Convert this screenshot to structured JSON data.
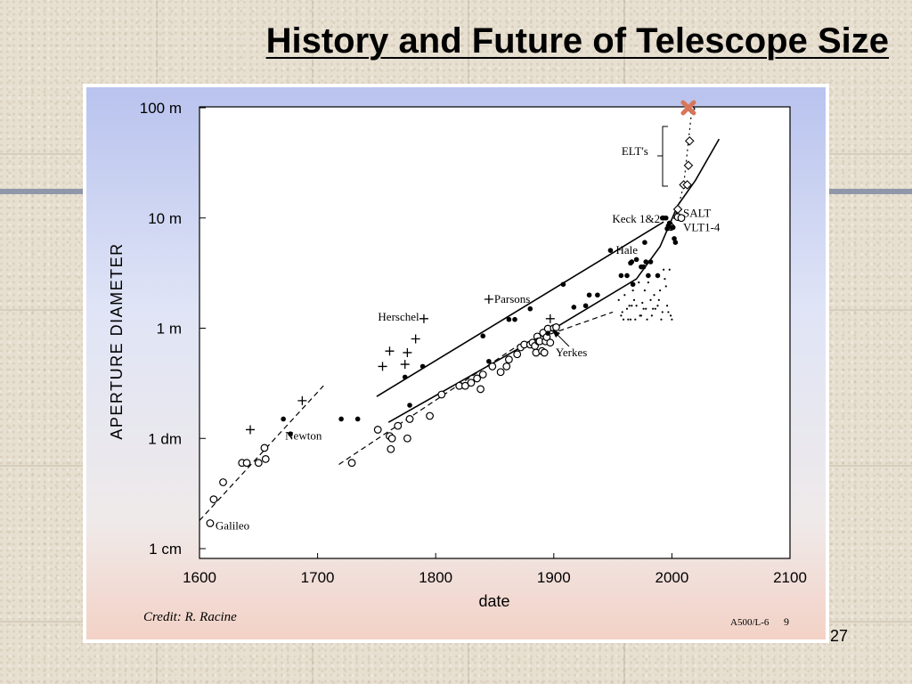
{
  "slide": {
    "title": "History and Future of Telescope Size",
    "page_number": "27"
  },
  "chart_data": {
    "type": "scatter",
    "xlabel": "date",
    "ylabel": "APERTURE DIAMETER",
    "xlim": [
      1600,
      2100
    ],
    "xticks": [
      1600,
      1700,
      1800,
      1900,
      2000,
      2100
    ],
    "y_scale": "log",
    "ylim_m": [
      0.01,
      100
    ],
    "yticks": [
      {
        "value_m": 100,
        "label": "100 m"
      },
      {
        "value_m": 10,
        "label": "10 m"
      },
      {
        "value_m": 1,
        "label": "1 m"
      },
      {
        "value_m": 0.1,
        "label": "1 dm"
      },
      {
        "value_m": 0.01,
        "label": "1 cm"
      }
    ],
    "grid": false,
    "credit": "Credit: R. Racine",
    "figure_id": "A500/L-6",
    "figure_page": "9",
    "annotations": [
      {
        "text": "Galileo",
        "x": 1609,
        "y": 0.016
      },
      {
        "text": "Newton",
        "x": 1668,
        "y": 0.105
      },
      {
        "text": "Herschel",
        "x": 1789,
        "y": 1.26
      },
      {
        "text": "Parsons",
        "x": 1845,
        "y": 1.83
      },
      {
        "text": "Yerkes",
        "x": 1897,
        "y": 0.6
      },
      {
        "text": "Hale",
        "x": 1948,
        "y": 5.08
      },
      {
        "text": "Keck 1&2",
        "x": 1993,
        "y": 9.8
      },
      {
        "text": "SALT",
        "x": 2005,
        "y": 11.0
      },
      {
        "text": "VLT1-4",
        "x": 2005,
        "y": 8.2
      },
      {
        "text": "ELT's",
        "x": 1983,
        "y": 40
      }
    ],
    "series": [
      {
        "marker": "open-circle",
        "x": [
          1609,
          1612,
          1620,
          1636,
          1640,
          1650,
          1655,
          1656,
          1729,
          1751,
          1761,
          1762,
          1763,
          1768,
          1776,
          1778,
          1795,
          1805,
          1820,
          1825,
          1830,
          1835,
          1838,
          1840,
          1848,
          1855,
          1860,
          1862,
          1869,
          1872,
          1875,
          1880,
          1882,
          1884,
          1885,
          1886,
          1887,
          1888,
          1890,
          1891,
          1892,
          1893,
          1894,
          1895,
          1897,
          1900,
          1902,
          1999,
          2005,
          2008
        ],
        "y": [
          0.017,
          0.028,
          0.04,
          0.06,
          0.06,
          0.06,
          0.082,
          0.065,
          0.06,
          0.12,
          0.105,
          0.08,
          0.1,
          0.13,
          0.1,
          0.15,
          0.16,
          0.25,
          0.3,
          0.3,
          0.32,
          0.35,
          0.28,
          0.38,
          0.45,
          0.4,
          0.45,
          0.52,
          0.58,
          0.67,
          0.71,
          0.71,
          0.74,
          0.69,
          0.6,
          0.84,
          0.76,
          0.76,
          0.62,
          0.91,
          0.6,
          0.76,
          0.83,
          0.99,
          0.74,
          1.0,
          1.02,
          8.3,
          10.2,
          10.0
        ]
      },
      {
        "marker": "filled-dot",
        "x": [
          1671,
          1677,
          1720,
          1734,
          1774,
          1778,
          1789,
          1840,
          1845,
          1862,
          1867,
          1880,
          1895,
          1908,
          1917,
          1927,
          1930,
          1937,
          1948,
          1957,
          1962,
          1965,
          1966,
          1967,
          1970,
          1974,
          1976,
          1977,
          1978,
          1980,
          1982,
          1988,
          1992,
          1993,
          1995,
          1996,
          1997,
          1998,
          2000,
          2001,
          2002,
          2003
        ],
        "y": [
          0.15,
          0.11,
          0.15,
          0.15,
          0.36,
          0.2,
          0.45,
          0.85,
          0.5,
          1.2,
          1.2,
          1.5,
          0.9,
          2.5,
          1.55,
          1.6,
          2.0,
          2.0,
          5.08,
          3.0,
          3.0,
          3.9,
          4.0,
          2.5,
          4.2,
          3.6,
          3.6,
          6.0,
          4.0,
          3.0,
          4.0,
          3.0,
          10.0,
          10.0,
          10.0,
          8.0,
          8.5,
          9.0,
          8.2,
          8.2,
          6.5,
          6.0
        ]
      },
      {
        "marker": "plus",
        "x": [
          1643,
          1687,
          1755,
          1761,
          1774,
          1776,
          1783,
          1790,
          1845,
          1897
        ],
        "y": [
          0.12,
          0.22,
          0.45,
          0.62,
          0.47,
          0.6,
          0.8,
          1.22,
          1.83,
          1.22
        ]
      },
      {
        "marker": "open-diamond",
        "x": [
          2005,
          2010,
          2013,
          2014,
          2015,
          2016
        ],
        "y": [
          12,
          20,
          20,
          30,
          50,
          98
        ]
      },
      {
        "marker": "small-dot",
        "x": [
          1955,
          1957,
          1959,
          1960,
          1962,
          1964,
          1965,
          1967,
          1968,
          1970,
          1972,
          1974,
          1975,
          1977,
          1978,
          1980,
          1982,
          1984,
          1985,
          1987,
          1988,
          1990,
          1992,
          1993,
          1995,
          1996,
          1998,
          2000,
          1958,
          1963,
          1966,
          1969,
          1973,
          1976,
          1979,
          1983,
          1986,
          1989,
          1991,
          1994,
          1997,
          1999
        ],
        "y": [
          1.8,
          1.3,
          1.2,
          2.0,
          1.5,
          1.6,
          1.2,
          2.2,
          1.8,
          1.6,
          2.6,
          1.3,
          1.7,
          2.2,
          1.5,
          2.6,
          1.8,
          1.5,
          2.0,
          3.0,
          1.6,
          2.2,
          1.4,
          3.4,
          2.4,
          1.6,
          3.4,
          1.2,
          1.4,
          1.2,
          1.6,
          1.2,
          1.3,
          1.5,
          1.2,
          1.3,
          1.5,
          1.8,
          1.2,
          2.8,
          1.4,
          1.3
        ]
      },
      {
        "marker": "cross",
        "x": [
          2014
        ],
        "y": [
          100
        ]
      }
    ],
    "fit_lines": [
      {
        "style": "dashed",
        "points": [
          [
            1600,
            0.018
          ],
          [
            1705,
            0.3
          ]
        ]
      },
      {
        "style": "solid",
        "points": [
          [
            1750,
            0.24
          ],
          [
            1993,
            9.2
          ]
        ]
      },
      {
        "style": "dashed",
        "points": [
          [
            1718,
            0.058
          ],
          [
            1870,
            0.7
          ],
          [
            1950,
            1.4
          ]
        ]
      },
      {
        "style": "solid",
        "points": [
          [
            1760,
            0.14
          ],
          [
            1900,
            0.99
          ],
          [
            1970,
            2.8
          ],
          [
            1990,
            5.5
          ],
          [
            2005,
            13
          ],
          [
            2020,
            22
          ],
          [
            2040,
            52
          ]
        ]
      },
      {
        "style": "dotted",
        "points": [
          [
            1998,
            8
          ],
          [
            2005,
            12
          ],
          [
            2010,
            20
          ],
          [
            2014,
            50
          ],
          [
            2017,
            98
          ],
          [
            2020,
            98
          ]
        ]
      }
    ]
  }
}
